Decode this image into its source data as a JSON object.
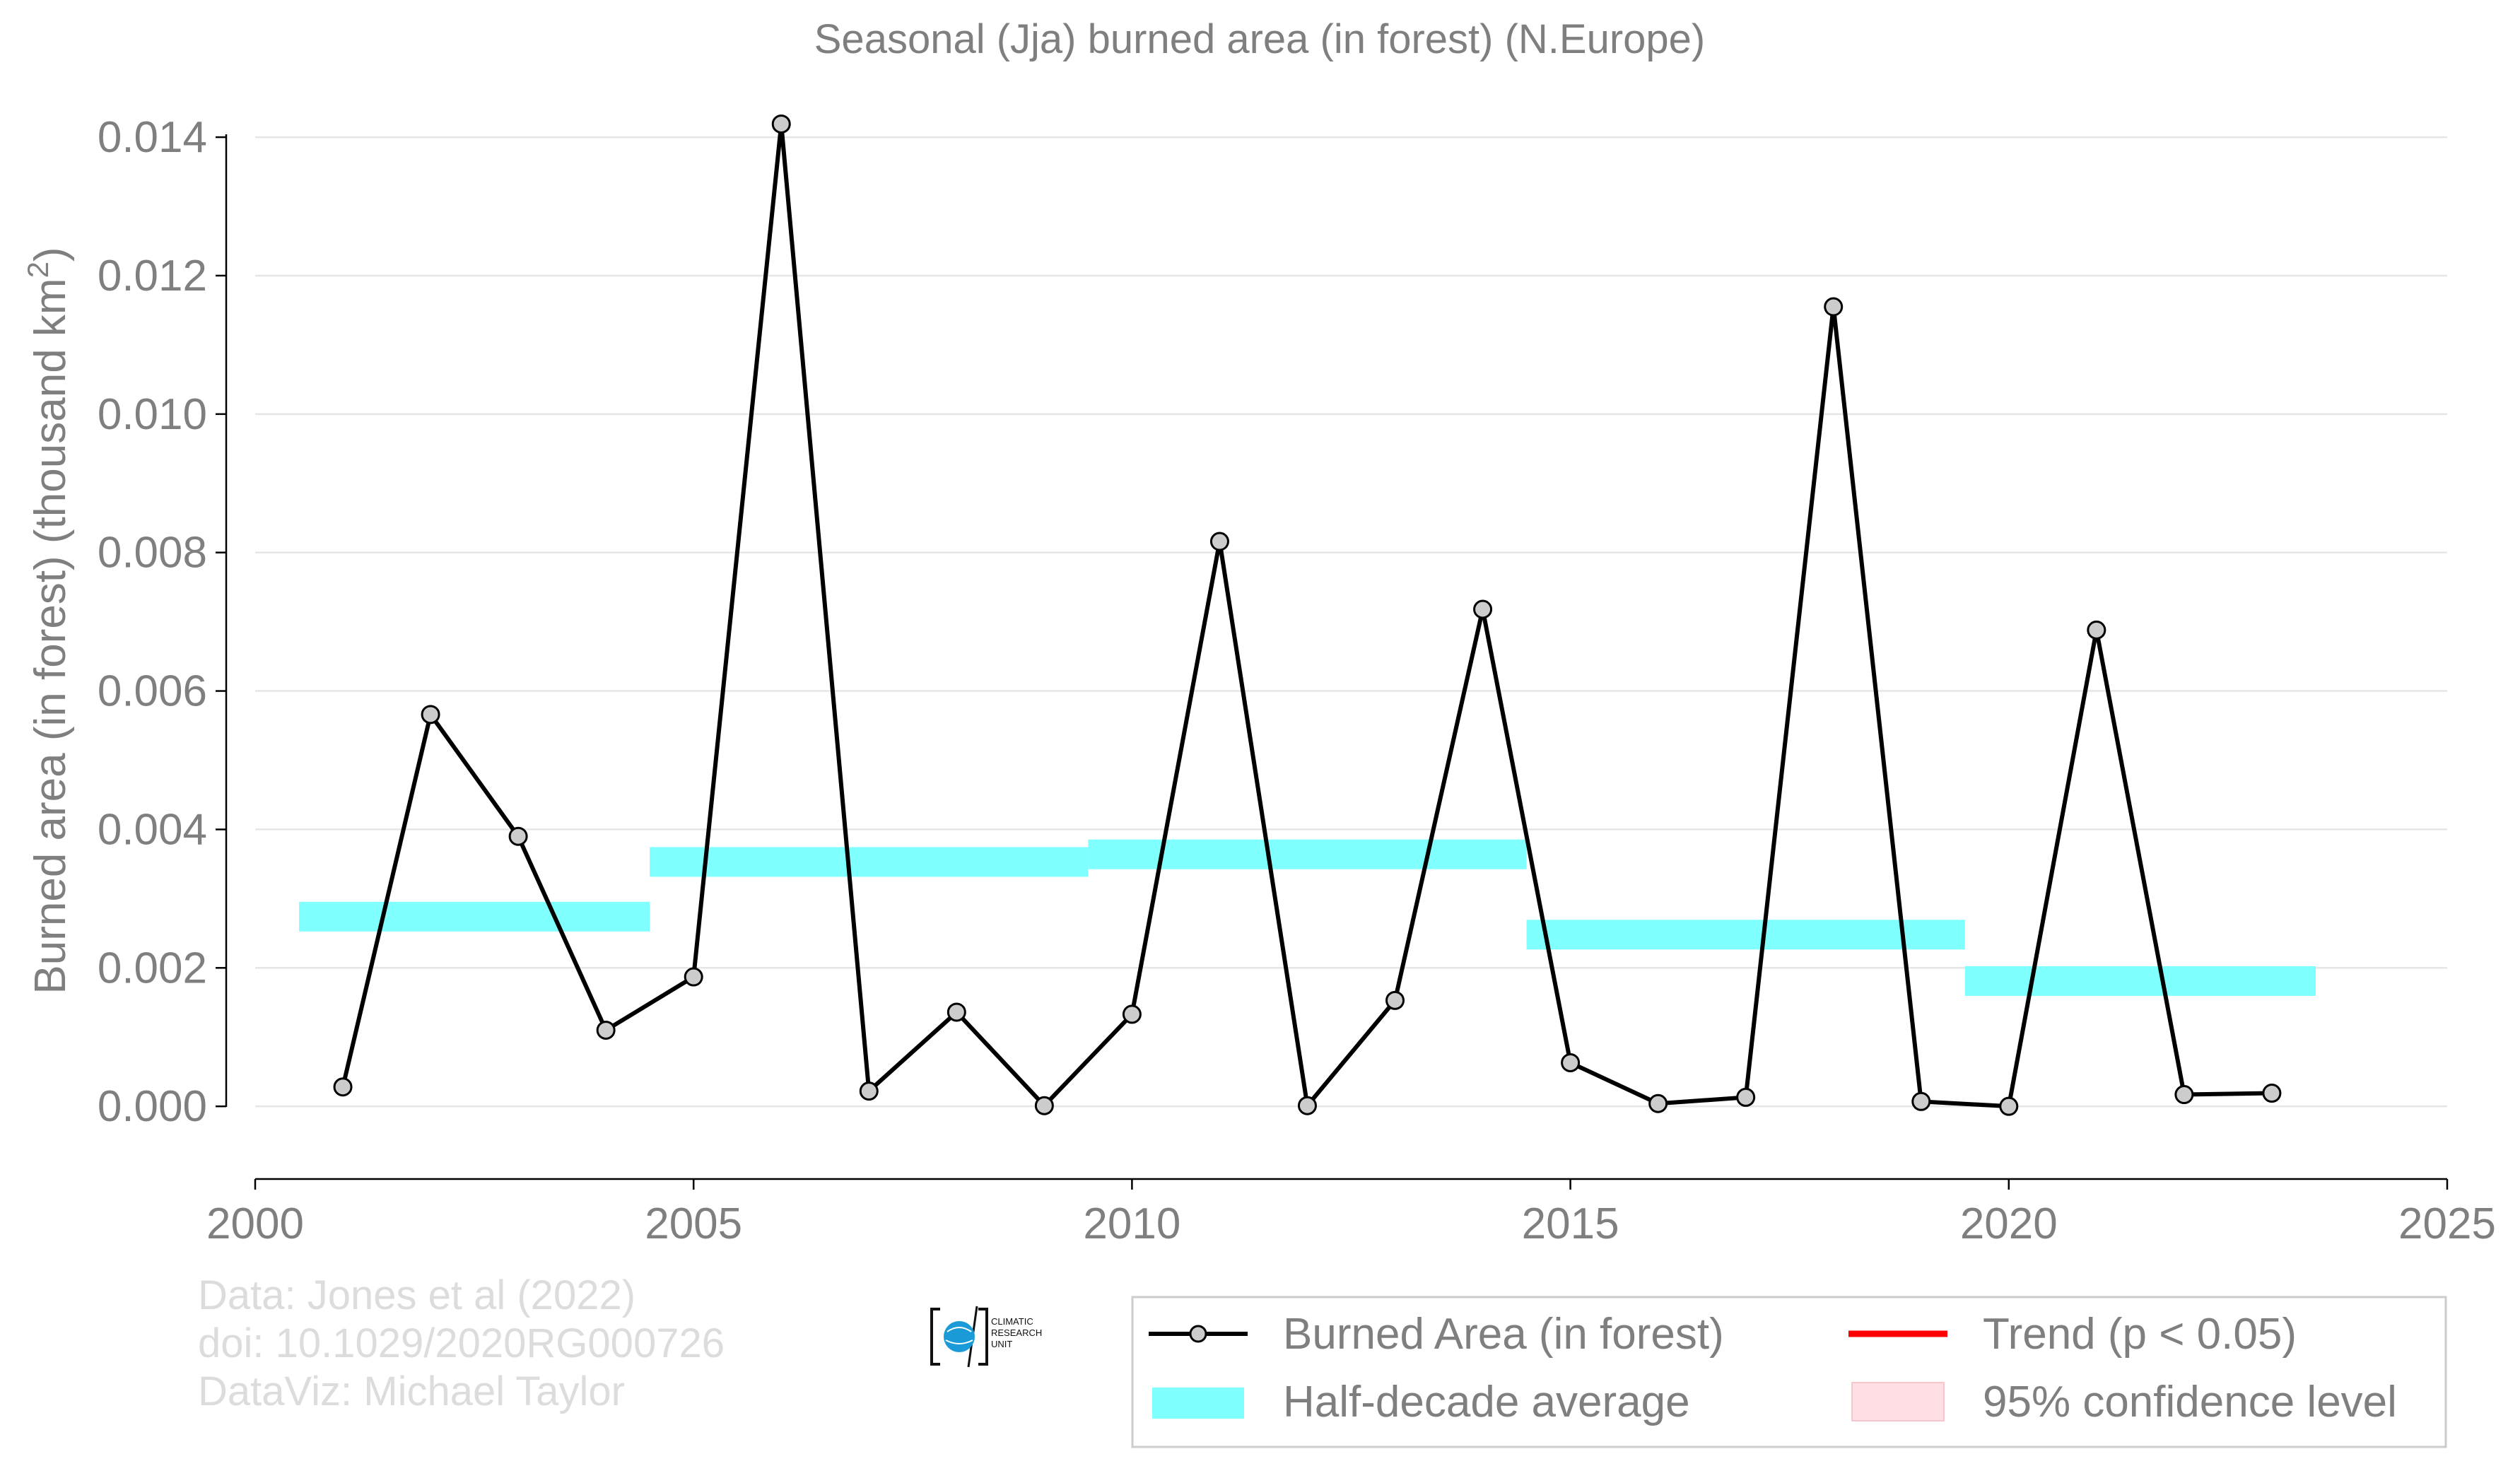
{
  "chart_data": {
    "type": "line",
    "title": "Seasonal (Jja) burned area (in forest) (N.Europe)",
    "ylabel_main": "Burned area (in forest) (thousand km",
    "ylabel_sup": "2",
    "ylabel_close": ")",
    "xlim": [
      2000,
      2025
    ],
    "ylim": [
      -0.00105,
      0.01445
    ],
    "x_ticks": [
      "2000",
      "2005",
      "2010",
      "2015",
      "2020",
      "2025"
    ],
    "y_ticks": [
      "0.000",
      "0.002",
      "0.004",
      "0.006",
      "0.008",
      "0.010",
      "0.012",
      "0.014"
    ],
    "grid": true,
    "series": [
      {
        "name": "Burned Area (in forest)",
        "color": "#000000",
        "marker_fill": "#cccccc",
        "x": [
          2001,
          2002,
          2003,
          2004,
          2005,
          2006,
          2007,
          2008,
          2009,
          2010,
          2011,
          2012,
          2013,
          2014,
          2015,
          2016,
          2017,
          2018,
          2019,
          2020,
          2021,
          2022,
          2023
        ],
        "y": [
          0.00028,
          0.00566,
          0.0039,
          0.0011,
          0.00187,
          0.01419,
          0.00022,
          0.00136,
          1e-05,
          0.00133,
          0.00816,
          1e-05,
          0.00153,
          0.00718,
          0.00063,
          4e-05,
          0.00013,
          0.01155,
          7e-05,
          0.0,
          0.00688,
          0.00017,
          0.00019
        ]
      }
    ],
    "half_decade_average": {
      "name": "Half-decade average",
      "color": "#80ffff",
      "segments": [
        {
          "x0": 2000.5,
          "x1": 2004.5,
          "y": 0.00274
        },
        {
          "x0": 2004.5,
          "x1": 2009.5,
          "y": 0.00353
        },
        {
          "x0": 2009.5,
          "x1": 2014.5,
          "y": 0.00364
        },
        {
          "x0": 2014.5,
          "x1": 2019.5,
          "y": 0.00248
        },
        {
          "x0": 2019.5,
          "x1": 2023.5,
          "y": 0.00181
        }
      ]
    },
    "legend": {
      "placement": "bottom-right",
      "items": [
        {
          "label": "Burned Area (in forest)",
          "kind": "line-marker",
          "color": "#000000"
        },
        {
          "label": "Trend (p < 0.05)",
          "kind": "line",
          "color": "#ff0000"
        },
        {
          "label": "Half-decade average",
          "kind": "band",
          "color": "#80ffff"
        },
        {
          "label": "95% confidence level",
          "kind": "patch",
          "color": "#ffdfe3"
        }
      ]
    }
  },
  "credits": [
    "Data: Jones et al (2022)",
    "doi: 10.1029/2020RG000726",
    "DataViz: Michael Taylor"
  ],
  "logo": {
    "lines": [
      "CLIMATIC",
      "RESEARCH",
      "UNIT"
    ],
    "globe_color": "#1a9ad6"
  }
}
